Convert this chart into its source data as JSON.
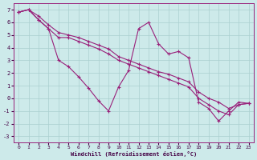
{
  "xlabel": "Windchill (Refroidissement éolien,°C)",
  "xlim": [
    -0.5,
    23.5
  ],
  "ylim": [
    -3.5,
    7.5
  ],
  "yticks": [
    -3,
    -2,
    -1,
    0,
    1,
    2,
    3,
    4,
    5,
    6,
    7
  ],
  "xticks": [
    0,
    1,
    2,
    3,
    4,
    5,
    6,
    7,
    8,
    9,
    10,
    11,
    12,
    13,
    14,
    15,
    16,
    17,
    18,
    19,
    20,
    21,
    22,
    23
  ],
  "background_color": "#cdeaea",
  "grid_color": "#aacfcf",
  "line_color": "#99207a",
  "line1_x": [
    0,
    1,
    2,
    3,
    4,
    5,
    6,
    7,
    8,
    9,
    10,
    11,
    12,
    13,
    14,
    15,
    16,
    17,
    18,
    19,
    20,
    21,
    22,
    23
  ],
  "line1_y": [
    6.8,
    7.0,
    6.5,
    5.8,
    5.2,
    5.0,
    4.8,
    4.5,
    4.2,
    3.9,
    3.3,
    3.0,
    2.7,
    2.4,
    2.1,
    1.9,
    1.6,
    1.3,
    0.5,
    0.0,
    -0.3,
    -0.8,
    -0.5,
    -0.4
  ],
  "line2_x": [
    0,
    1,
    2,
    3,
    4,
    5,
    6,
    7,
    8,
    9,
    10,
    11,
    12,
    13,
    14,
    15,
    16,
    17,
    18,
    19,
    20,
    21,
    22,
    23
  ],
  "line2_y": [
    6.8,
    7.0,
    6.2,
    5.5,
    3.0,
    2.5,
    1.7,
    0.8,
    -0.2,
    -1.0,
    0.9,
    2.2,
    5.5,
    6.0,
    4.3,
    3.5,
    3.7,
    3.2,
    -0.3,
    -0.8,
    -1.8,
    -1.0,
    -0.3,
    -0.4
  ],
  "line3_x": [
    0,
    1,
    2,
    3,
    4,
    5,
    6,
    7,
    8,
    9,
    10,
    11,
    12,
    13,
    14,
    15,
    16,
    17,
    18,
    19,
    20,
    21,
    22,
    23
  ],
  "line3_y": [
    6.8,
    7.0,
    6.2,
    5.5,
    4.8,
    4.8,
    4.5,
    4.2,
    3.9,
    3.5,
    3.0,
    2.7,
    2.4,
    2.1,
    1.8,
    1.5,
    1.2,
    0.9,
    0.0,
    -0.5,
    -1.0,
    -1.3,
    -0.5,
    -0.4
  ]
}
